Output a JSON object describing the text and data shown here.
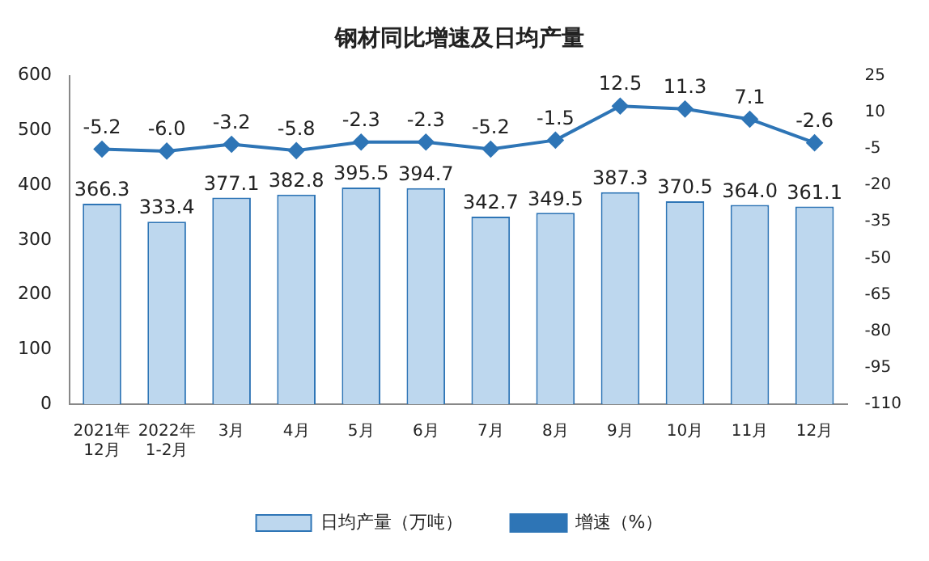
{
  "chart_data": {
    "type": "bar",
    "title": "钢材同比增速及日均产量",
    "categories": [
      "2021年\n12月",
      "2022年\n1-2月",
      "3月",
      "4月",
      "5月",
      "6月",
      "7月",
      "8月",
      "9月",
      "10月",
      "11月",
      "12月"
    ],
    "series": [
      {
        "name": "日均产量（万吨）",
        "color": "#bdd7ee",
        "values": [
          366.3,
          333.4,
          377.1,
          382.8,
          395.5,
          394.7,
          342.7,
          349.5,
          387.3,
          370.5,
          364.0,
          361.1
        ],
        "value_labels": [
          "366.3",
          "333.4",
          "377.1",
          "382.8",
          "395.5",
          "394.7",
          "342.7",
          "349.5",
          "387.3",
          "370.5",
          "364.0",
          "361.1"
        ]
      },
      {
        "name": "增速（%）",
        "type": "line",
        "axis": "y2",
        "color": "#2e75b6",
        "values": [
          -5.2,
          -6.0,
          -3.2,
          -5.8,
          -2.3,
          -2.3,
          -5.2,
          -1.5,
          12.5,
          11.3,
          7.1,
          -2.6
        ],
        "value_labels": [
          "-5.2",
          "-6.0",
          "-3.2",
          "-5.8",
          "-2.3",
          "-2.3",
          "-5.2",
          "-1.5",
          "12.5",
          "11.3",
          "7.1",
          "-2.6"
        ]
      }
    ],
    "ylim": [
      0,
      600
    ],
    "yticks": [
      0,
      100,
      200,
      300,
      400,
      500,
      600
    ],
    "y2lim": [
      -110,
      25
    ],
    "y2ticks": [
      25,
      10,
      -5,
      -20,
      -35,
      -50,
      -65,
      -80,
      -95,
      -110
    ],
    "marker": "diamond",
    "grid": false,
    "legend": "bottom"
  }
}
